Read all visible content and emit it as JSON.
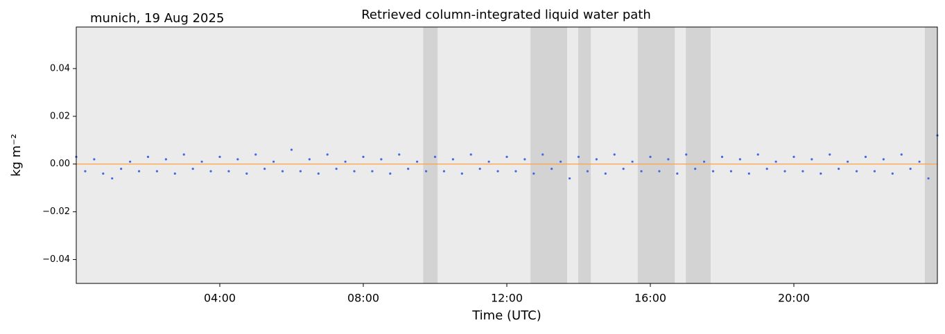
{
  "chart_data": {
    "type": "scatter",
    "title": "Retrieved column-integrated liquid water path",
    "subtitle": "munich, 19 Aug 2025",
    "xlabel": "Time (UTC)",
    "ylabel": "kg m⁻²",
    "xlim": [
      0,
      24
    ],
    "ylim": [
      -0.05,
      0.0574
    ],
    "xticks": [
      {
        "value": 4,
        "label": "04:00"
      },
      {
        "value": 8,
        "label": "08:00"
      },
      {
        "value": 12,
        "label": "12:00"
      },
      {
        "value": 16,
        "label": "16:00"
      },
      {
        "value": 20,
        "label": "20:00"
      }
    ],
    "yticks": [
      {
        "value": -0.04,
        "label": "−0.04"
      },
      {
        "value": -0.02,
        "label": "−0.02"
      },
      {
        "value": 0,
        "label": "0.00"
      },
      {
        "value": 0.02,
        "label": "0.02"
      },
      {
        "value": 0.04,
        "label": "0.04"
      }
    ],
    "background": "#ebebeb",
    "shaded_color": "#d3d3d3",
    "shaded_spans": [
      [
        9.67,
        10.07
      ],
      [
        12.66,
        13.68
      ],
      [
        13.99,
        14.34
      ],
      [
        15.65,
        16.68
      ],
      [
        16.99,
        17.68
      ],
      [
        23.65,
        24
      ]
    ],
    "series": [
      {
        "type": "scatter",
        "color": "#4169e1",
        "x": [
          0,
          0.25,
          0.5,
          0.75,
          1,
          1.25,
          1.5,
          1.75,
          2,
          2.25,
          2.5,
          2.75,
          3,
          3.25,
          3.5,
          3.75,
          4,
          4.25,
          4.5,
          4.75,
          5,
          5.25,
          5.5,
          5.75,
          6,
          6.25,
          6.5,
          6.75,
          7,
          7.25,
          7.5,
          7.75,
          8,
          8.25,
          8.5,
          8.75,
          9,
          9.25,
          9.5,
          9.75,
          10,
          10.25,
          10.5,
          10.75,
          11,
          11.25,
          11.5,
          11.75,
          12,
          12.25,
          12.5,
          12.75,
          13,
          13.25,
          13.5,
          13.75,
          14,
          14.25,
          14.5,
          14.75,
          15,
          15.25,
          15.5,
          15.75,
          16,
          16.25,
          16.5,
          16.75,
          17,
          17.25,
          17.5,
          17.75,
          18,
          18.25,
          18.5,
          18.75,
          19,
          19.25,
          19.5,
          19.75,
          20,
          20.25,
          20.5,
          20.75,
          21,
          21.25,
          21.5,
          21.75,
          22,
          22.25,
          22.5,
          22.75,
          23,
          23.25,
          23.5,
          23.75,
          24
        ],
        "values": [
          0.003,
          -0.003,
          0.002,
          -0.004,
          -0.006,
          -0.002,
          0.001,
          -0.003,
          0.003,
          -0.003,
          0.002,
          -0.004,
          0.004,
          -0.002,
          0.001,
          -0.003,
          0.003,
          -0.003,
          0.002,
          -0.004,
          0.004,
          -0.002,
          0.001,
          -0.003,
          0.006,
          -0.003,
          0.002,
          -0.004,
          0.004,
          -0.002,
          0.001,
          -0.003,
          0.003,
          -0.003,
          0.002,
          -0.004,
          0.004,
          -0.002,
          0.001,
          -0.003,
          0.003,
          -0.003,
          0.002,
          -0.004,
          0.004,
          -0.002,
          0.001,
          -0.003,
          0.003,
          -0.003,
          0.002,
          -0.004,
          0.004,
          -0.002,
          0.001,
          -0.006,
          0.003,
          -0.003,
          0.002,
          -0.004,
          0.004,
          -0.002,
          0.001,
          -0.003,
          0.003,
          -0.003,
          0.002,
          -0.004,
          0.004,
          -0.002,
          0.001,
          -0.003,
          0.003,
          -0.003,
          0.002,
          -0.004,
          0.004,
          -0.002,
          0.001,
          -0.003,
          0.003,
          -0.003,
          0.002,
          -0.004,
          0.004,
          -0.002,
          0.001,
          -0.003,
          0.003,
          -0.003,
          0.002,
          -0.004,
          0.004,
          -0.002,
          0.001,
          -0.006,
          0.012
        ]
      },
      {
        "type": "line",
        "color": "#ff9f40",
        "x": [
          0,
          24
        ],
        "values": [
          0,
          0
        ]
      }
    ]
  }
}
